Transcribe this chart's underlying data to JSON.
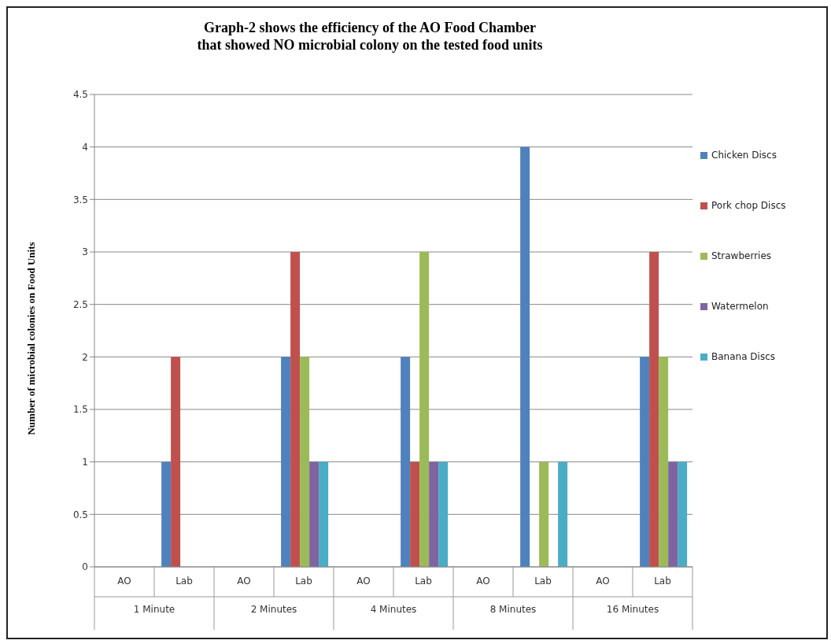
{
  "chart_data": {
    "type": "bar",
    "title": "Graph-2 shows the efficiency of the AO Food Chamber\nthat showed NO microbial colony  on the tested food units",
    "ylabel": "Number of microbial colonies on Food Units",
    "categories": [
      "AO",
      "Lab",
      "AO",
      "Lab",
      "AO",
      "Lab",
      "AO",
      "Lab",
      "AO",
      "Lab"
    ],
    "annotations": [
      "1 Minute",
      "2 Minutes",
      "4 Minutes",
      "8 Minutes",
      "16 Minutes"
    ],
    "series": [
      {
        "name": "Chicken Discs",
        "color": "#4f81bd",
        "values": [
          0,
          1,
          0,
          2,
          0,
          2,
          0,
          4,
          0,
          2
        ]
      },
      {
        "name": "Pork chop Discs",
        "color": "#c0504d",
        "values": [
          0,
          2,
          0,
          3,
          0,
          1,
          0,
          0,
          0,
          3
        ]
      },
      {
        "name": "Strawberries",
        "color": "#9bbb59",
        "values": [
          0,
          0,
          0,
          2,
          0,
          3,
          0,
          1,
          0,
          2
        ]
      },
      {
        "name": "Watermelon",
        "color": "#8064a2",
        "values": [
          0,
          0,
          0,
          1,
          0,
          1,
          0,
          0,
          0,
          1
        ]
      },
      {
        "name": "Banana Discs",
        "color": "#4bacc6",
        "values": [
          0,
          0,
          0,
          1,
          0,
          1,
          0,
          1,
          0,
          1
        ]
      }
    ],
    "ylim": [
      0,
      4.5
    ],
    "yticks": [
      0,
      0.5,
      1,
      1.5,
      2,
      2.5,
      3,
      3.5,
      4,
      4.5
    ],
    "grid": "y",
    "legend": "right"
  }
}
